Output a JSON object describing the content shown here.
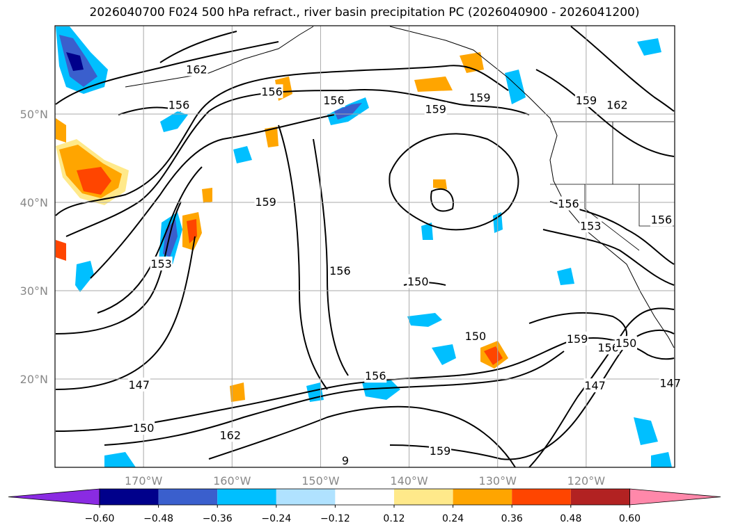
{
  "title": "2026040700 F024 500 hPa refract., river basin precipitation PC (2026040900 - 2026041200)",
  "lat_labels": [
    "50°N",
    "40°N",
    "30°N",
    "20°N"
  ],
  "lon_labels": [
    "170°W",
    "160°W",
    "150°W",
    "140°W",
    "130°W",
    "120°W"
  ],
  "colorbar": {
    "colors": [
      "#8a2be2",
      "#00008b",
      "#3a5fcd",
      "#00bfff",
      "#b0e2ff",
      "#ffffff",
      "#ffe98a",
      "#ffa500",
      "#ff4500",
      "#b22222",
      "#ff88aa"
    ],
    "tick_labels": [
      "−0.60",
      "−0.48",
      "−0.36",
      "−0.24",
      "−0.12",
      "0.12",
      "0.24",
      "0.36",
      "0.48",
      "0.60"
    ]
  },
  "contour_levels": [
    "147",
    "150",
    "153",
    "156",
    "159",
    "162"
  ],
  "contour_labels": [
    {
      "text": "156",
      "lat": 51.0,
      "lon": -166.0
    },
    {
      "text": "162",
      "lat": 55.0,
      "lon": -164.0
    },
    {
      "text": "156",
      "lat": 52.5,
      "lon": -155.5
    },
    {
      "text": "156",
      "lat": 51.5,
      "lon": -148.5
    },
    {
      "text": "159",
      "lat": 50.5,
      "lon": -137.0
    },
    {
      "text": "159",
      "lat": 51.8,
      "lon": -132.0
    },
    {
      "text": "159",
      "lat": 51.5,
      "lon": -120.0
    },
    {
      "text": "162",
      "lat": 51.0,
      "lon": -116.5
    },
    {
      "text": "159",
      "lat": 40.0,
      "lon": -156.2
    },
    {
      "text": "156",
      "lat": 39.8,
      "lon": -122.0
    },
    {
      "text": "153",
      "lat": 37.3,
      "lon": -119.5
    },
    {
      "text": "156",
      "lat": 38.0,
      "lon": -111.5
    },
    {
      "text": "153",
      "lat": 33.0,
      "lon": -168.0
    },
    {
      "text": "156",
      "lat": 32.2,
      "lon": -147.8
    },
    {
      "text": "150",
      "lat": 31.0,
      "lon": -139.0
    },
    {
      "text": "150",
      "lat": 24.8,
      "lon": -132.5
    },
    {
      "text": "159",
      "lat": 24.5,
      "lon": -121.0
    },
    {
      "text": "156",
      "lat": 23.5,
      "lon": -117.5
    },
    {
      "text": "150",
      "lat": 24.0,
      "lon": -115.5
    },
    {
      "text": "147",
      "lat": 19.5,
      "lon": -110.5
    },
    {
      "text": "147",
      "lat": 19.2,
      "lon": -119.0
    },
    {
      "text": "147",
      "lat": 19.3,
      "lon": -170.5
    },
    {
      "text": "156",
      "lat": 20.3,
      "lon": -143.8
    },
    {
      "text": "150",
      "lat": 14.4,
      "lon": -170.0
    },
    {
      "text": "162",
      "lat": 13.6,
      "lon": -160.2
    },
    {
      "text": "159",
      "lat": 11.8,
      "lon": -136.5
    },
    {
      "text": "9",
      "lat": 10.7,
      "lon": -147.2
    }
  ]
}
